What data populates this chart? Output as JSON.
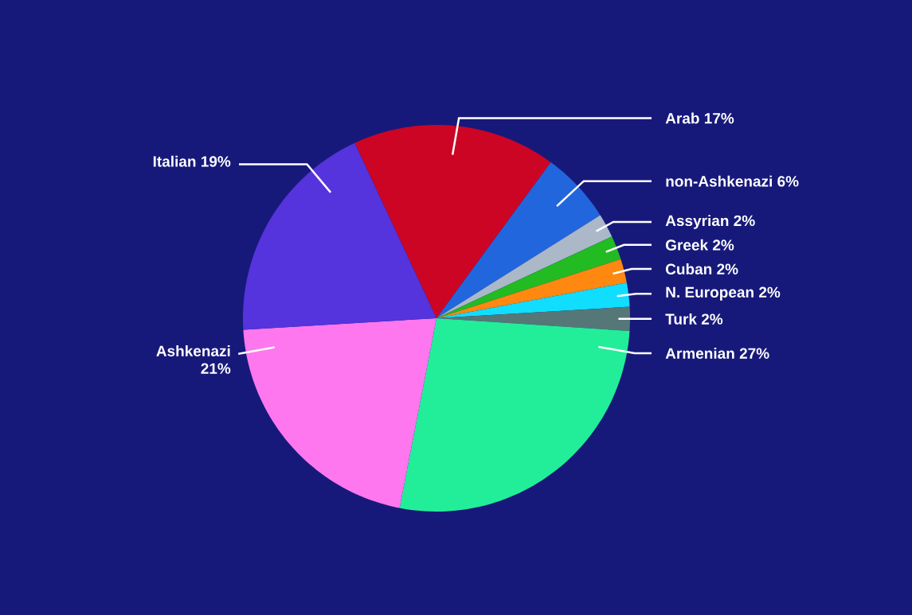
{
  "chart_data": {
    "type": "pie",
    "categories": [
      "Arab",
      "non-Ashkenazi",
      "Assyrian",
      "Greek",
      "Cuban",
      "N. European",
      "Turk",
      "Armenian",
      "Ashkenazi",
      "Italian"
    ],
    "values": [
      17,
      6,
      2,
      2,
      2,
      2,
      2,
      27,
      21,
      19
    ],
    "value_labels": [
      "17%",
      "6%",
      "2%",
      "2%",
      "2%",
      "2%",
      "2%",
      "27%",
      "21%",
      "19%"
    ],
    "colors": [
      "#cc0524",
      "#2266dd",
      "#aab8c8",
      "#22bb22",
      "#ff8811",
      "#11ddff",
      "#557777",
      "#22ee99",
      "#ff77ee",
      "#5533dd"
    ]
  }
}
